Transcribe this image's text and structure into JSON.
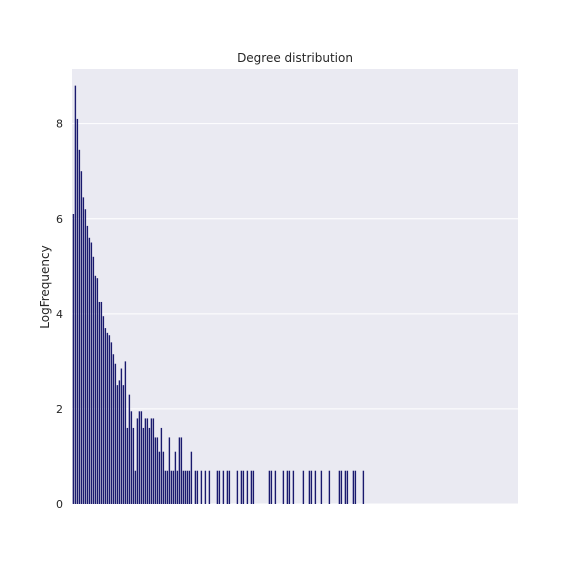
{
  "chart_data": {
    "type": "bar",
    "title": "Degree distribution",
    "xlabel": "",
    "ylabel": "LogFrequency",
    "ylim": [
      0,
      9.15
    ],
    "yticks": [
      0,
      2,
      4,
      6,
      8
    ],
    "grid": true,
    "x_count": 160,
    "x": [
      0,
      1,
      2,
      3,
      4,
      5,
      6,
      7,
      8,
      9,
      10,
      11,
      12,
      13,
      14,
      15,
      16,
      17,
      18,
      19,
      20,
      21,
      22,
      23,
      24,
      25,
      26,
      27,
      28,
      29,
      30,
      31,
      32,
      33,
      34,
      35,
      36,
      37,
      38,
      39,
      40,
      41,
      42,
      43,
      44,
      45,
      46,
      47,
      48,
      49,
      50,
      51,
      52,
      53,
      54,
      55,
      56,
      57,
      58,
      59,
      61,
      62,
      64,
      66,
      68,
      72,
      73,
      75,
      77,
      78,
      82,
      84,
      85,
      87,
      89,
      90,
      98,
      99,
      101,
      105,
      107,
      108,
      110,
      115,
      118,
      119,
      121,
      124,
      128,
      133,
      134,
      136,
      137,
      140,
      141,
      145
    ],
    "values": [
      6.1,
      8.8,
      8.1,
      7.45,
      7.0,
      6.45,
      6.2,
      5.85,
      5.6,
      5.5,
      5.2,
      4.8,
      4.75,
      4.25,
      4.25,
      3.95,
      3.7,
      3.6,
      3.55,
      3.4,
      3.15,
      2.95,
      2.5,
      2.6,
      2.85,
      2.5,
      3.0,
      1.6,
      2.3,
      1.95,
      1.6,
      0.7,
      1.8,
      1.95,
      1.95,
      1.6,
      1.8,
      1.8,
      1.6,
      1.8,
      1.8,
      1.4,
      1.4,
      1.1,
      1.6,
      1.1,
      0.7,
      0.7,
      1.4,
      0.7,
      0.7,
      1.1,
      0.7,
      1.4,
      1.4,
      0.7,
      0.7,
      0.7,
      0.7,
      1.1,
      0.7,
      0.7,
      0.7,
      0.7,
      0.7,
      0.7,
      0.7,
      0.7,
      0.7,
      0.7,
      0.7,
      0.7,
      0.7,
      0.7,
      0.7,
      0.7,
      0.7,
      0.7,
      0.7,
      0.7,
      0.7,
      0.7,
      0.7,
      0.7,
      0.7,
      0.7,
      0.7,
      0.7,
      0.7,
      0.7,
      0.7,
      0.7,
      0.7,
      0.7,
      0.7,
      0.7
    ],
    "bar_color": "#1a1a6e",
    "background": "#eaeaf2",
    "grid_color": "#ffffff"
  }
}
